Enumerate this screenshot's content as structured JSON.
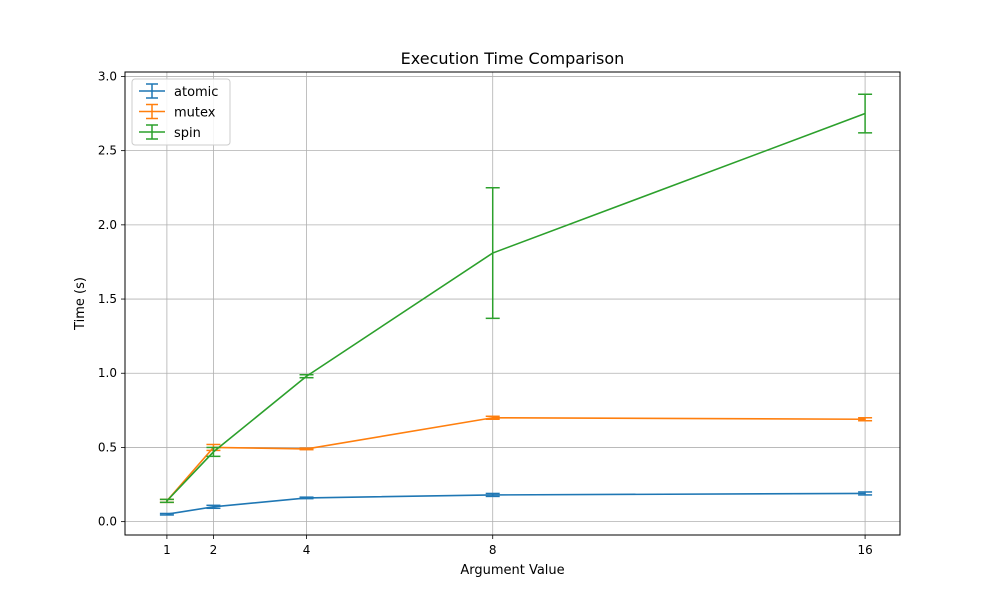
{
  "chart_data": {
    "type": "line",
    "title": "Execution Time Comparison",
    "xlabel": "Argument Value",
    "ylabel": "Time (s)",
    "x": [
      1,
      2,
      4,
      8,
      16
    ],
    "x_tick_labels": [
      "1",
      "2",
      "4",
      "8",
      "16"
    ],
    "xlim": [
      0.1,
      16.75
    ],
    "ylim": [
      -0.09,
      3.03
    ],
    "y_ticks": [
      0.0,
      0.5,
      1.0,
      1.5,
      2.0,
      2.5,
      3.0
    ],
    "y_tick_labels": [
      "0.0",
      "0.5",
      "1.0",
      "1.5",
      "2.0",
      "2.5",
      "3.0"
    ],
    "grid": true,
    "legend_position": "top-left",
    "series": [
      {
        "name": "atomic",
        "color": "#1f77b4",
        "values": [
          0.05,
          0.1,
          0.16,
          0.18,
          0.19
        ],
        "errors": [
          0.005,
          0.01,
          0.005,
          0.01,
          0.01
        ]
      },
      {
        "name": "mutex",
        "color": "#ff7f0e",
        "values": [
          0.14,
          0.5,
          0.49,
          0.7,
          0.69
        ],
        "errors": [
          0.01,
          0.02,
          0.005,
          0.01,
          0.01
        ]
      },
      {
        "name": "spin",
        "color": "#2ca02c",
        "values": [
          0.14,
          0.47,
          0.98,
          1.81,
          2.75
        ],
        "errors": [
          0.01,
          0.03,
          0.01,
          0.44,
          0.13
        ]
      }
    ]
  }
}
